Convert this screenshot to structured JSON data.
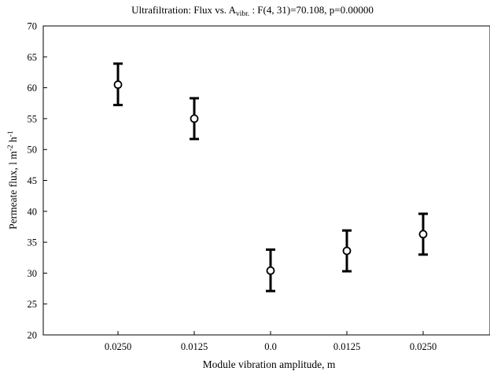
{
  "chart_data": {
    "type": "scatter",
    "title": {
      "prefix": "Ultrafiltration: Flux vs. A",
      "subscript": "vibr.",
      "suffix": " : F(4, 31)=70.108, p=0.00000"
    },
    "xlabel": "Module vibration amplitude, m",
    "ylabel": {
      "base": "Permeate flux, l m",
      "sup1": "-2",
      "mid": " h",
      "sup2": "-1"
    },
    "categories": [
      "0.0250",
      "0.0125",
      "0.0",
      "0.0125",
      "0.0250"
    ],
    "series": [
      {
        "means": [
          60.5,
          55.0,
          30.4,
          33.6,
          36.3
        ],
        "lower": [
          57.2,
          51.7,
          27.1,
          30.3,
          33.0
        ],
        "upper": [
          63.9,
          58.3,
          33.8,
          36.9,
          39.6
        ]
      }
    ],
    "ylim": [
      20,
      70
    ],
    "yticks": [
      20,
      25,
      30,
      35,
      40,
      45,
      50,
      55,
      60,
      65,
      70
    ],
    "grid": false,
    "legend": "none",
    "colors": {
      "marker": "#000000",
      "axis": "#000000"
    }
  }
}
